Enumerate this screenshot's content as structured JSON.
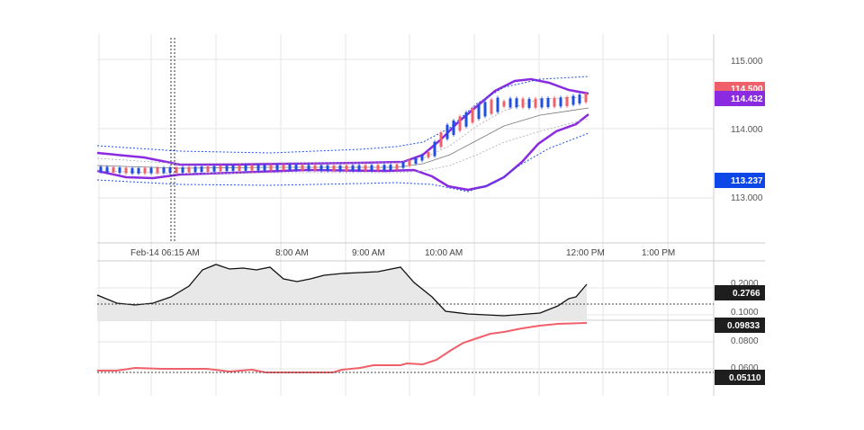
{
  "colors": {
    "purple": "#8a2be2",
    "blue_dot": "#1f4fe0",
    "red_line": "#f0606a",
    "red_badge": "#f0606a",
    "blue_badge": "#0d47e8",
    "dark_badge": "#1e1e1e",
    "grid": "#e6e6e6",
    "fill_gray": "#e8e8e8"
  },
  "chart_data": [
    {
      "type": "candlestick",
      "ylim": [
        112.4,
        115.3
      ],
      "y_ticks": [
        "115.000",
        "114.000",
        "113.000"
      ],
      "x_ticks": [
        "Feb-14 06:15 AM",
        "8:00 AM",
        "9:00 AM",
        "10:00 AM",
        "12:00 PM",
        "1:00 PM"
      ],
      "last_price_badges": [
        {
          "label": "114.500",
          "color": "#f0606a",
          "value": 114.5
        },
        {
          "label": "114.432",
          "color": "#8a2be2",
          "value": 114.432
        },
        {
          "label": "113.237",
          "color": "#0d47e8",
          "value": 113.237
        }
      ]
    },
    {
      "type": "area",
      "y_ticks": [
        "0.2000",
        "0.1000"
      ],
      "last_value_badge": "0.2766"
    },
    {
      "type": "line",
      "y_ticks": [
        "0.0800",
        "0.0600"
      ],
      "last_value_badges": [
        "0.09833",
        "0.05110"
      ]
    }
  ]
}
